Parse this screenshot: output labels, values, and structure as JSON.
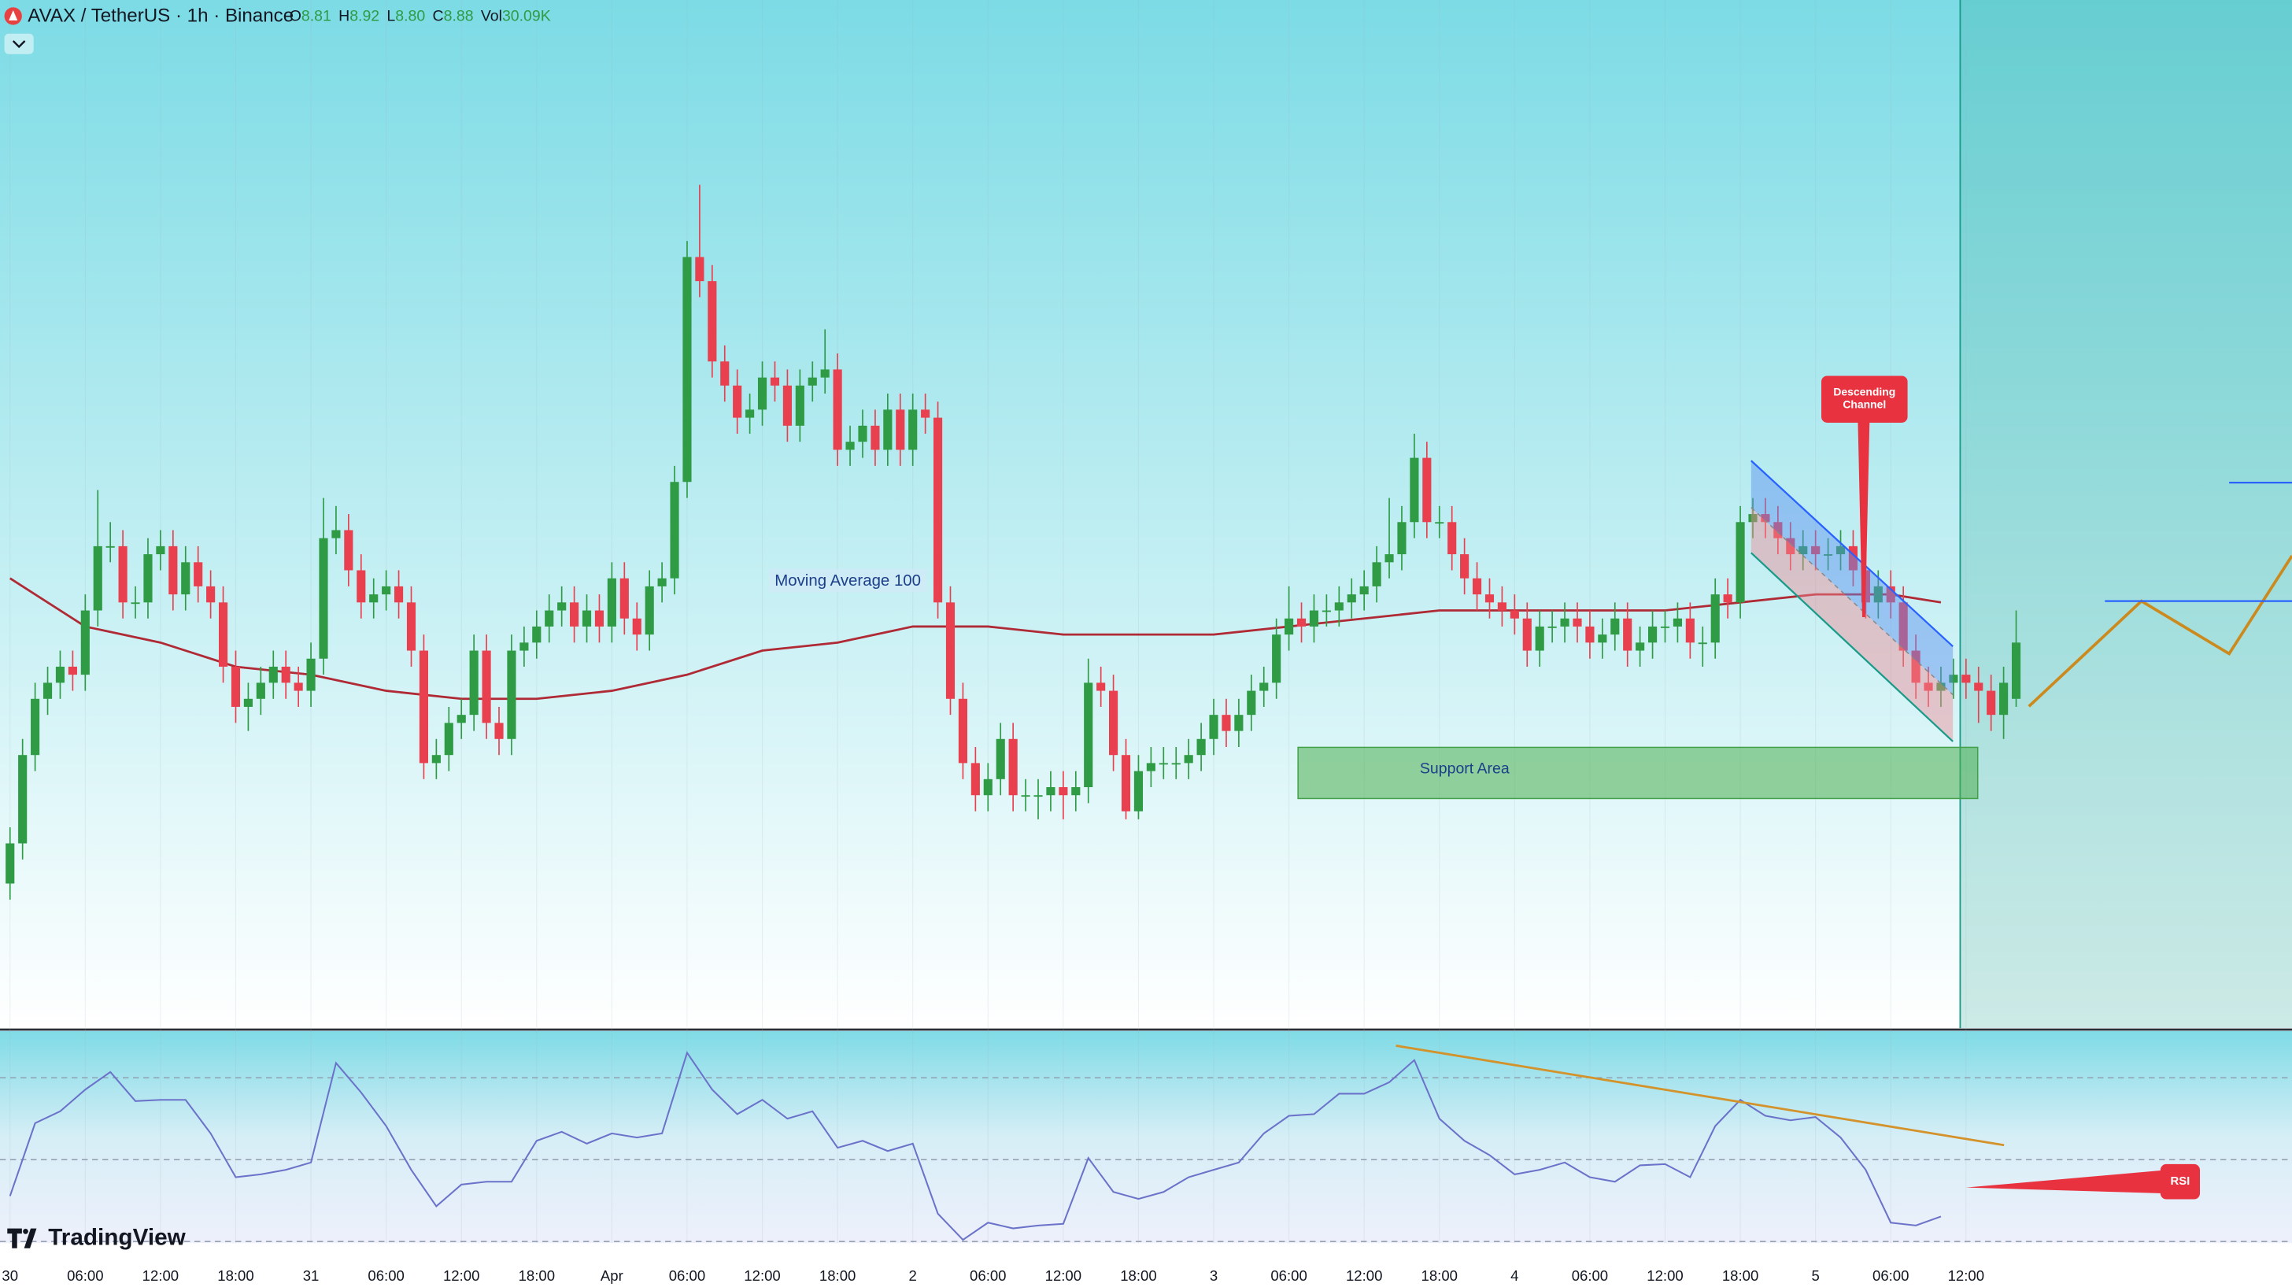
{
  "brand": "TradingView",
  "chart_data": [
    {
      "type": "candlestick",
      "title": "AVAX / TetherUS · 1h · Binance",
      "header": [
        {
          "label": "O",
          "value": "8.81"
        },
        {
          "label": "H",
          "value": "8.92"
        },
        {
          "label": "L",
          "value": "8.80"
        },
        {
          "label": "C",
          "value": "8.88"
        },
        {
          "label": "Vol",
          "value": "30.09K"
        }
      ],
      "up_color": "#2f9b45",
      "down_color": "#e8404f",
      "xlim": [
        -0.8,
        182
      ],
      "ylim": [
        8.4,
        9.68
      ],
      "grid": true,
      "xticks": [
        {
          "value": 0,
          "label": "30"
        },
        {
          "value": 6,
          "label": "06:00"
        },
        {
          "value": 12,
          "label": "12:00"
        },
        {
          "value": 18,
          "label": "18:00"
        },
        {
          "value": 24,
          "label": "31"
        },
        {
          "value": 30,
          "label": "06:00"
        },
        {
          "value": 36,
          "label": "12:00"
        },
        {
          "value": 42,
          "label": "18:00"
        },
        {
          "value": 48,
          "label": "Apr"
        },
        {
          "value": 54,
          "label": "06:00"
        },
        {
          "value": 60,
          "label": "12:00"
        },
        {
          "value": 66,
          "label": "18:00"
        },
        {
          "value": 72,
          "label": "2"
        },
        {
          "value": 78,
          "label": "06:00"
        },
        {
          "value": 84,
          "label": "12:00"
        },
        {
          "value": 90,
          "label": "18:00"
        },
        {
          "value": 96,
          "label": "3"
        },
        {
          "value": 102,
          "label": "06:00"
        },
        {
          "value": 108,
          "label": "12:00"
        },
        {
          "value": 114,
          "label": "18:00"
        },
        {
          "value": 120,
          "label": "4"
        },
        {
          "value": 126,
          "label": "06:00"
        },
        {
          "value": 132,
          "label": "12:00"
        },
        {
          "value": 138,
          "label": "18:00"
        },
        {
          "value": 144,
          "label": "5"
        },
        {
          "value": 150,
          "label": "06:00"
        },
        {
          "value": 156,
          "label": "12:00"
        }
      ],
      "open": [
        8.58,
        8.63,
        8.74,
        8.81,
        8.83,
        8.85,
        8.84,
        8.92,
        9.0,
        9.0,
        8.93,
        8.93,
        8.99,
        9.0,
        8.94,
        8.98,
        8.95,
        8.93,
        8.85,
        8.8,
        8.81,
        8.83,
        8.85,
        8.83,
        8.82,
        8.86,
        9.01,
        9.02,
        8.97,
        8.93,
        8.94,
        8.95,
        8.93,
        8.87,
        8.73,
        8.74,
        8.78,
        8.79,
        8.87,
        8.78,
        8.76,
        8.87,
        8.88,
        8.9,
        8.92,
        8.93,
        8.9,
        8.92,
        8.9,
        8.96,
        8.91,
        8.89,
        8.95,
        8.96,
        9.08,
        9.36,
        9.33,
        9.23,
        9.2,
        9.16,
        9.17,
        9.21,
        9.2,
        9.15,
        9.2,
        9.21,
        9.22,
        9.12,
        9.13,
        9.15,
        9.12,
        9.17,
        9.12,
        9.17,
        9.16,
        8.93,
        8.81,
        8.73,
        8.69,
        8.71,
        8.76,
        8.69,
        8.69,
        8.69,
        8.7,
        8.69,
        8.7,
        8.83,
        8.82,
        8.74,
        8.67,
        8.72,
        8.73,
        8.73,
        8.73,
        8.74,
        8.76,
        8.79,
        8.77,
        8.79,
        8.82,
        8.83,
        8.89,
        8.91,
        8.9,
        8.92,
        8.92,
        8.93,
        8.94,
        8.95,
        8.98,
        8.99,
        9.03,
        9.11,
        9.03,
        9.03,
        8.99,
        8.96,
        8.94,
        8.93,
        8.92,
        8.91,
        8.87,
        8.9,
        8.9,
        8.91,
        8.9,
        8.88,
        8.89,
        8.91,
        8.87,
        8.88,
        8.9,
        8.9,
        8.91,
        8.88,
        8.88,
        8.94,
        8.93,
        9.03,
        9.04,
        9.03,
        9.01,
        8.99,
        9.0,
        8.99,
        8.99,
        9.0,
        8.97,
        8.93,
        8.95,
        8.93,
        8.87,
        8.83,
        8.82,
        8.83,
        8.84,
        8.83,
        8.82,
        8.79,
        8.81
      ],
      "high": [
        8.65,
        8.76,
        8.83,
        8.85,
        8.87,
        8.87,
        8.94,
        9.07,
        9.03,
        9.02,
        8.95,
        9.01,
        9.02,
        9.02,
        9.0,
        9.0,
        8.97,
        8.95,
        8.87,
        8.83,
        8.85,
        8.87,
        8.87,
        8.85,
        8.88,
        9.06,
        9.05,
        9.04,
        8.99,
        8.96,
        8.97,
        8.97,
        8.95,
        8.89,
        8.76,
        8.8,
        8.81,
        8.89,
        8.89,
        8.8,
        8.89,
        8.9,
        8.92,
        8.94,
        8.95,
        8.95,
        8.94,
        8.94,
        8.98,
        8.98,
        8.93,
        8.97,
        8.98,
        9.1,
        9.38,
        9.45,
        9.35,
        9.25,
        9.22,
        9.19,
        9.23,
        9.23,
        9.22,
        9.22,
        9.23,
        9.27,
        9.24,
        9.15,
        9.17,
        9.17,
        9.19,
        9.19,
        9.19,
        9.19,
        9.18,
        8.95,
        8.83,
        8.75,
        8.73,
        8.78,
        8.78,
        8.71,
        8.71,
        8.72,
        8.72,
        8.72,
        8.86,
        8.85,
        8.84,
        8.76,
        8.74,
        8.75,
        8.75,
        8.75,
        8.76,
        8.78,
        8.81,
        8.81,
        8.81,
        8.84,
        8.85,
        8.91,
        8.95,
        8.93,
        8.94,
        8.94,
        8.95,
        8.96,
        8.97,
        9.0,
        9.06,
        9.05,
        9.14,
        9.13,
        9.05,
        9.05,
        9.01,
        8.98,
        8.96,
        8.95,
        8.94,
        8.93,
        8.92,
        8.92,
        8.93,
        8.93,
        8.92,
        8.91,
        8.93,
        8.93,
        8.9,
        8.92,
        8.92,
        8.93,
        8.93,
        8.9,
        8.96,
        8.96,
        9.05,
        9.06,
        9.06,
        9.05,
        9.03,
        9.02,
        9.02,
        9.01,
        9.02,
        9.02,
        8.99,
        8.97,
        8.97,
        8.95,
        8.89,
        8.85,
        8.85,
        8.86,
        8.86,
        8.85,
        8.84,
        8.85,
        8.92
      ],
      "low": [
        8.56,
        8.61,
        8.72,
        8.79,
        8.81,
        8.82,
        8.82,
        8.9,
        8.98,
        8.91,
        8.91,
        8.91,
        8.97,
        8.92,
        8.92,
        8.93,
        8.91,
        8.83,
        8.78,
        8.77,
        8.79,
        8.81,
        8.81,
        8.8,
        8.8,
        8.84,
        8.99,
        8.95,
        8.91,
        8.91,
        8.92,
        8.91,
        8.85,
        8.71,
        8.71,
        8.72,
        8.76,
        8.77,
        8.76,
        8.74,
        8.74,
        8.85,
        8.86,
        8.88,
        8.9,
        8.88,
        8.88,
        8.88,
        8.88,
        8.89,
        8.87,
        8.87,
        8.93,
        8.94,
        9.06,
        9.31,
        9.21,
        9.18,
        9.14,
        9.14,
        9.15,
        9.18,
        9.13,
        9.13,
        9.18,
        9.19,
        9.1,
        9.1,
        9.11,
        9.1,
        9.1,
        9.1,
        9.1,
        9.14,
        8.91,
        8.79,
        8.71,
        8.67,
        8.67,
        8.69,
        8.67,
        8.67,
        8.66,
        8.67,
        8.66,
        8.67,
        8.68,
        8.8,
        8.72,
        8.66,
        8.66,
        8.7,
        8.71,
        8.71,
        8.71,
        8.72,
        8.74,
        8.75,
        8.75,
        8.77,
        8.8,
        8.81,
        8.87,
        8.88,
        8.88,
        8.9,
        8.9,
        8.91,
        8.92,
        8.93,
        8.96,
        8.97,
        9.01,
        9.01,
        9.01,
        8.97,
        8.94,
        8.92,
        8.91,
        8.9,
        8.89,
        8.85,
        8.85,
        8.88,
        8.88,
        8.88,
        8.86,
        8.86,
        8.87,
        8.85,
        8.85,
        8.86,
        8.88,
        8.88,
        8.86,
        8.85,
        8.86,
        8.91,
        8.91,
        9.01,
        9.01,
        8.99,
        8.97,
        8.97,
        8.97,
        8.97,
        8.97,
        8.95,
        8.91,
        8.91,
        8.91,
        8.85,
        8.81,
        8.8,
        8.8,
        8.81,
        8.81,
        8.78,
        8.77,
        8.76,
        8.8
      ],
      "close": [
        8.63,
        8.74,
        8.81,
        8.83,
        8.85,
        8.84,
        8.92,
        9.0,
        9.0,
        8.93,
        8.93,
        8.99,
        9.0,
        8.94,
        8.98,
        8.95,
        8.93,
        8.85,
        8.8,
        8.81,
        8.83,
        8.85,
        8.83,
        8.82,
        8.86,
        9.01,
        9.02,
        8.97,
        8.93,
        8.94,
        8.95,
        8.93,
        8.87,
        8.73,
        8.74,
        8.78,
        8.79,
        8.87,
        8.78,
        8.76,
        8.87,
        8.88,
        8.9,
        8.92,
        8.93,
        8.9,
        8.92,
        8.9,
        8.96,
        8.91,
        8.89,
        8.95,
        8.96,
        9.08,
        9.36,
        9.33,
        9.23,
        9.2,
        9.16,
        9.17,
        9.21,
        9.2,
        9.15,
        9.2,
        9.21,
        9.22,
        9.12,
        9.13,
        9.15,
        9.12,
        9.17,
        9.12,
        9.17,
        9.16,
        8.93,
        8.81,
        8.73,
        8.69,
        8.71,
        8.76,
        8.69,
        8.69,
        8.69,
        8.7,
        8.69,
        8.7,
        8.83,
        8.82,
        8.74,
        8.67,
        8.72,
        8.73,
        8.73,
        8.73,
        8.74,
        8.76,
        8.79,
        8.77,
        8.79,
        8.82,
        8.83,
        8.89,
        8.91,
        8.9,
        8.92,
        8.92,
        8.93,
        8.94,
        8.95,
        8.98,
        8.99,
        9.03,
        9.11,
        9.03,
        9.03,
        8.99,
        8.96,
        8.94,
        8.93,
        8.92,
        8.91,
        8.87,
        8.9,
        8.9,
        8.91,
        8.9,
        8.88,
        8.89,
        8.91,
        8.87,
        8.88,
        8.9,
        8.9,
        8.91,
        8.88,
        8.88,
        8.94,
        8.93,
        9.03,
        9.04,
        9.03,
        9.01,
        8.99,
        9.0,
        8.99,
        8.99,
        9.0,
        8.97,
        8.93,
        8.95,
        8.93,
        8.87,
        8.83,
        8.82,
        8.83,
        8.84,
        8.83,
        8.82,
        8.79,
        8.83,
        8.88
      ],
      "ma": {
        "color": "#b02a35",
        "x": [
          0,
          6,
          12,
          18,
          24,
          30,
          36,
          42,
          48,
          54,
          60,
          66,
          72,
          78,
          84,
          90,
          96,
          102,
          108,
          114,
          120,
          126,
          132,
          138,
          144,
          150,
          154
        ],
        "values": [
          8.96,
          8.9,
          8.88,
          8.85,
          8.84,
          8.82,
          8.81,
          8.81,
          8.82,
          8.84,
          8.87,
          8.88,
          8.9,
          8.9,
          8.89,
          8.89,
          8.89,
          8.9,
          8.91,
          8.92,
          8.92,
          8.92,
          8.92,
          8.93,
          8.94,
          8.94,
          8.93
        ]
      },
      "annotations": {
        "ma_label": "Moving Average 100",
        "support": "Support Area",
        "callout": [
          "Descending",
          "Channel"
        ]
      }
    },
    {
      "type": "line",
      "annotation": "RSI",
      "xlim": [
        -0.8,
        182
      ],
      "ylim": [
        29.6,
        81.4
      ],
      "levels": [
        70,
        50,
        30
      ],
      "color": "#6b72c9",
      "x": [
        0,
        2,
        4,
        6,
        8,
        10,
        12,
        14,
        16,
        18,
        20,
        22,
        24,
        26,
        28,
        30,
        32,
        34,
        36,
        38,
        40,
        42,
        44,
        46,
        48,
        50,
        52,
        54,
        56,
        58,
        60,
        62,
        64,
        66,
        68,
        70,
        72,
        74,
        76,
        78,
        80,
        82,
        84,
        86,
        88,
        90,
        92,
        94,
        96,
        98,
        100,
        102,
        104,
        106,
        108,
        110,
        112,
        114,
        116,
        118,
        120,
        122,
        124,
        126,
        128,
        130,
        132,
        134,
        136,
        138,
        140,
        142,
        144,
        146,
        148,
        150,
        152,
        154
      ],
      "values": [
        41.1,
        58.9,
        61.8,
        67.1,
        71.4,
        64.3,
        64.6,
        64.6,
        56.4,
        45.7,
        46.4,
        47.5,
        49.3,
        73.6,
        66.4,
        58.2,
        47.5,
        38.6,
        43.9,
        44.6,
        44.6,
        54.6,
        56.8,
        53.9,
        56.4,
        55.4,
        56.4,
        76.1,
        67.1,
        61.1,
        64.6,
        60.0,
        61.8,
        52.9,
        54.6,
        52.1,
        53.9,
        36.8,
        30.4,
        34.6,
        33.2,
        33.9,
        34.3,
        50.4,
        42.1,
        40.4,
        42.1,
        45.7,
        47.5,
        49.3,
        56.4,
        60.7,
        61.1,
        66.1,
        66.1,
        68.9,
        74.3,
        60.0,
        54.6,
        51.1,
        46.4,
        47.5,
        49.3,
        45.7,
        44.6,
        48.6,
        48.9,
        45.7,
        58.2,
        64.6,
        60.7,
        59.6,
        60.4,
        55.4,
        47.5,
        34.6,
        33.9,
        36.1
      ]
    }
  ]
}
